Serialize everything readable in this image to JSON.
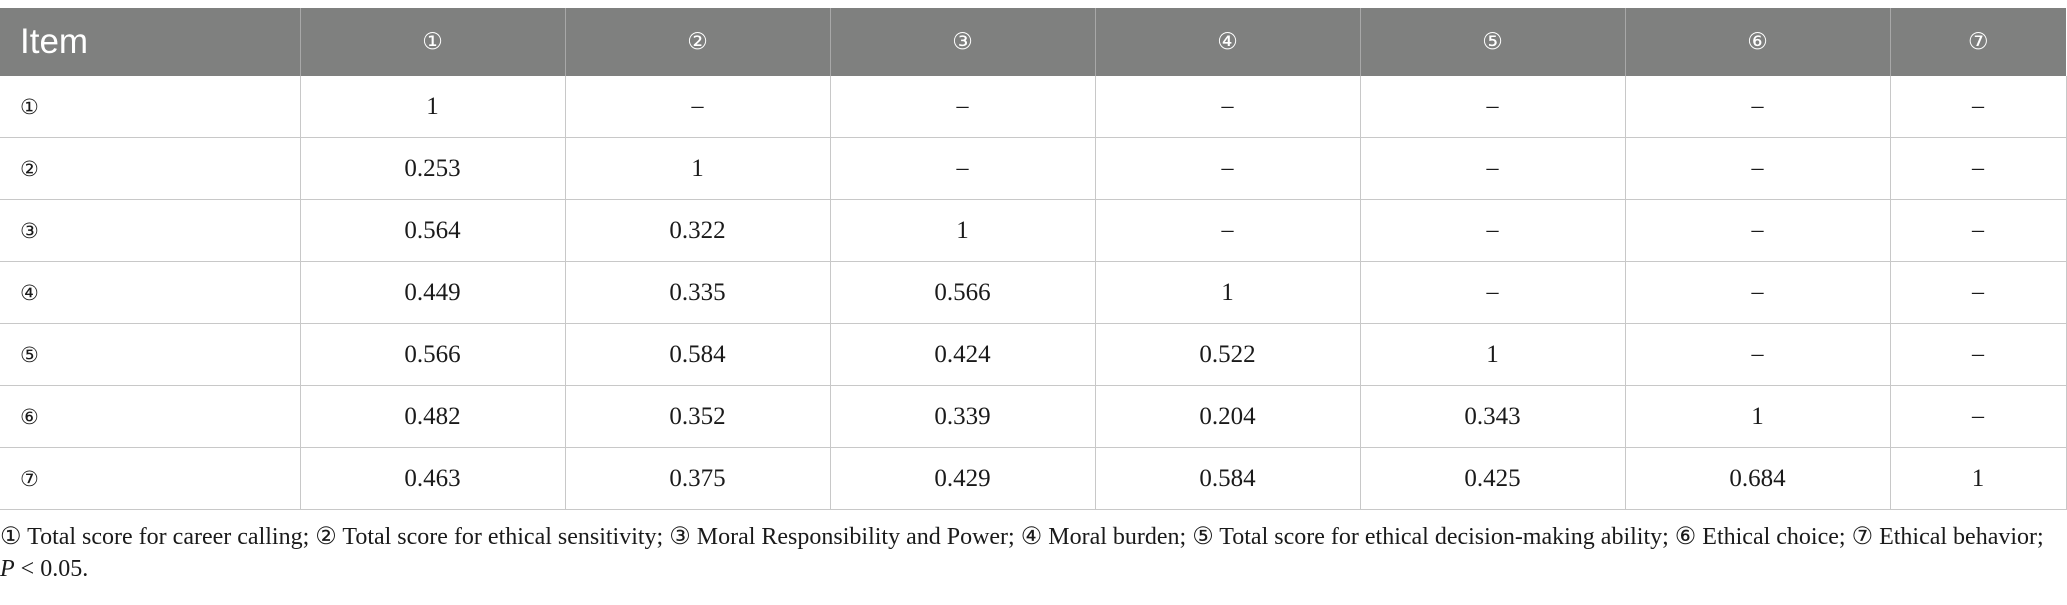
{
  "table": {
    "headers": [
      "Item",
      "①",
      "②",
      "③",
      "④",
      "⑤",
      "⑥",
      "⑦"
    ],
    "rows": [
      {
        "item": "①",
        "cells": [
          "1",
          "–",
          "–",
          "–",
          "–",
          "–",
          "–"
        ]
      },
      {
        "item": "②",
        "cells": [
          "0.253",
          "1",
          "–",
          "–",
          "–",
          "–",
          "–"
        ]
      },
      {
        "item": "③",
        "cells": [
          "0.564",
          "0.322",
          "1",
          "–",
          "–",
          "–",
          "–"
        ]
      },
      {
        "item": "④",
        "cells": [
          "0.449",
          "0.335",
          "0.566",
          "1",
          "–",
          "–",
          "–"
        ]
      },
      {
        "item": "⑤",
        "cells": [
          "0.566",
          "0.584",
          "0.424",
          "0.522",
          "1",
          "–",
          "–"
        ]
      },
      {
        "item": "⑥",
        "cells": [
          "0.482",
          "0.352",
          "0.339",
          "0.204",
          "0.343",
          "1",
          "–"
        ]
      },
      {
        "item": "⑦",
        "cells": [
          "0.463",
          "0.375",
          "0.429",
          "0.584",
          "0.425",
          "0.684",
          "1"
        ]
      }
    ]
  },
  "footnote": {
    "text": "① Total score for career calling; ② Total score for ethical sensitivity; ③ Moral Responsibility and Power; ④ Moral burden; ⑤ Total score for ethical decision-making ability; ⑥ Ethical choice; ⑦ Ethical behavior; ",
    "p_label": "P",
    "p_value": " < 0.05."
  },
  "colors": {
    "header_bg": "#7f807f",
    "header_text": "#ffffff",
    "grid": "#c8c8c8"
  }
}
